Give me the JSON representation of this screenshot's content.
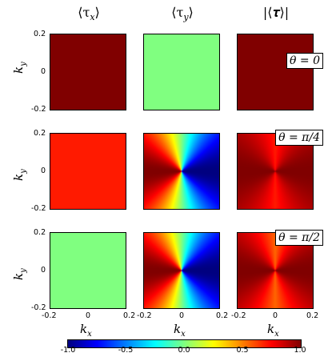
{
  "columns": [
    {
      "title": "⟨τ_x⟩",
      "title_main": "⟨τ",
      "title_sub": "x",
      "title_end": "⟩"
    },
    {
      "title": "⟨τ_y⟩",
      "title_main": "⟨τ",
      "title_sub": "y",
      "title_end": "⟩"
    },
    {
      "title": "|⟨τ⟩|",
      "title_main": "|⟨𝝉⟩|",
      "title_sub": "",
      "title_end": ""
    }
  ],
  "rows": [
    {
      "theta_label": "θ = 0"
    },
    {
      "theta_label": "θ = π/4"
    },
    {
      "theta_label": "θ = π/2"
    }
  ],
  "axes": {
    "ylabel_main": "k",
    "ylabel_sub": "y",
    "xlabel_main": "k",
    "xlabel_sub": "x",
    "y_ticks": [
      "0.2",
      "0",
      "-0.2"
    ],
    "x_ticks": [
      "-0.2",
      "0",
      "0.2"
    ],
    "kx_range": [
      -0.2,
      0.2
    ],
    "ky_range": [
      -0.2,
      0.2
    ]
  },
  "colorbar": {
    "ticks": [
      "-1.0",
      "-0.5",
      "0.0",
      "0.5",
      "1.0"
    ],
    "range": [
      -1.0,
      1.0
    ],
    "colormap": "jet"
  },
  "panels": [
    {
      "row": 0,
      "col": 0,
      "field": "constant",
      "value": 1.0
    },
    {
      "row": 0,
      "col": 1,
      "field": "constant",
      "value": 0.0
    },
    {
      "row": 0,
      "col": 2,
      "field": "constant",
      "value": 1.0
    },
    {
      "row": 1,
      "col": 0,
      "field": "constant",
      "value": 0.7
    },
    {
      "row": 1,
      "col": 1,
      "field": "angular_cos",
      "scale": 1.0
    },
    {
      "row": 1,
      "col": 2,
      "field": "angular_abs",
      "base": 0.7,
      "amp": 0.3
    },
    {
      "row": 2,
      "col": 0,
      "field": "constant",
      "value": 0.0
    },
    {
      "row": 2,
      "col": 1,
      "field": "angular_cos",
      "scale": 1.0
    },
    {
      "row": 2,
      "col": 2,
      "field": "angular_abs",
      "base": 0.55,
      "amp": 0.45
    }
  ]
}
